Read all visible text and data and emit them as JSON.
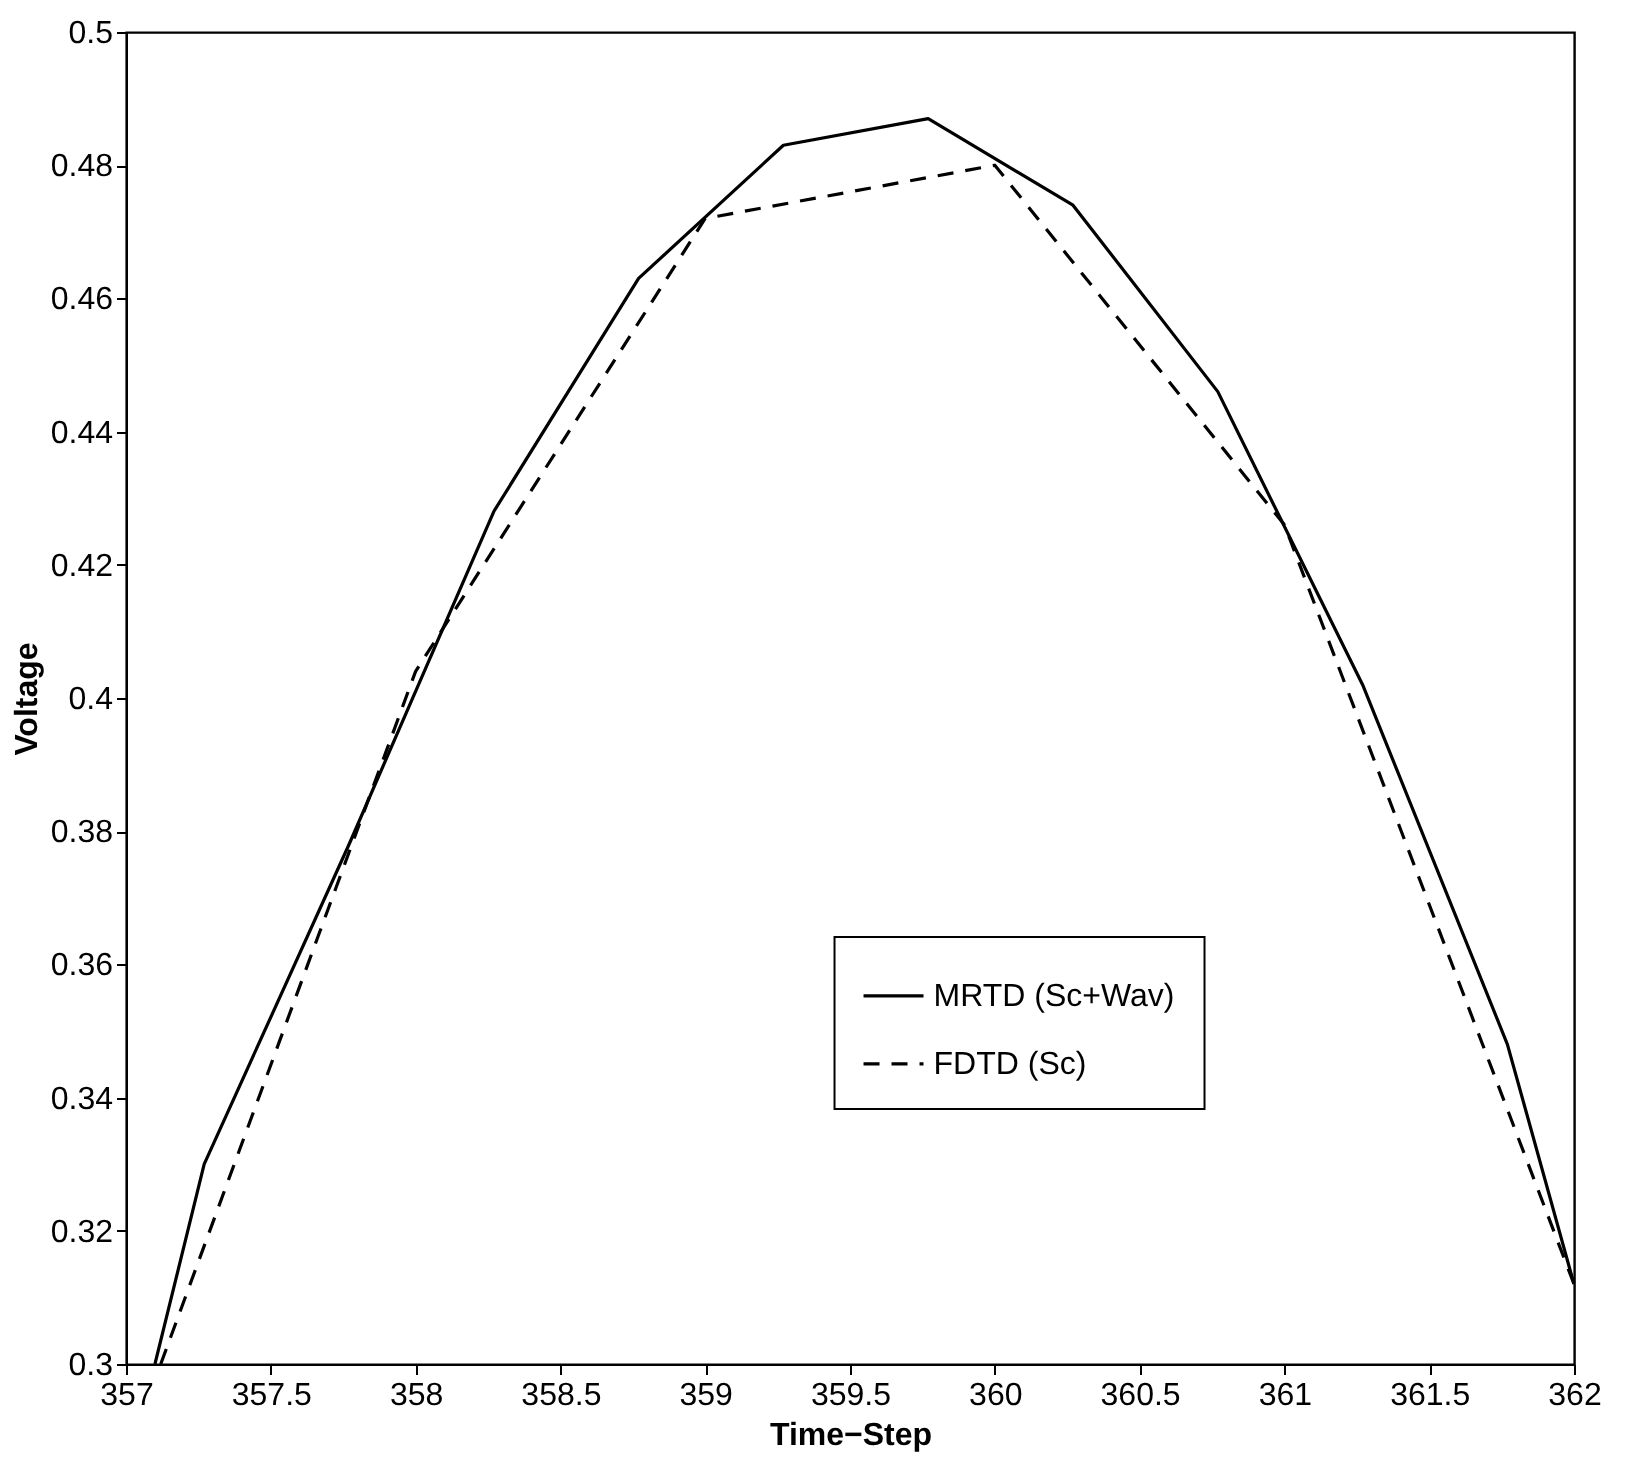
{
  "chart_data": {
    "type": "line",
    "xlabel": "Time−Step",
    "ylabel": "Voltage",
    "xlim": [
      357,
      362
    ],
    "xticks": [
      357,
      357.5,
      358,
      358.5,
      359,
      359.5,
      360,
      360.5,
      361,
      361.5,
      362
    ],
    "ylim": [
      0.3,
      0.5
    ],
    "yticks": [
      0.3,
      0.32,
      0.34,
      0.36,
      0.38,
      0.4,
      0.42,
      0.44,
      0.46,
      0.48,
      0.5
    ],
    "legend": "bottom",
    "grid": false,
    "series": [
      {
        "name": "MRTD (Sc+Wav)",
        "color": "#000000",
        "line_style": "solid",
        "x": [
          357.1,
          357.27,
          357.77,
          358.27,
          358.77,
          359.27,
          359.77,
          360.27,
          360.77,
          361.27,
          361.77,
          362
        ],
        "values": [
          0.3,
          0.33,
          0.378,
          0.428,
          0.463,
          0.483,
          0.487,
          0.474,
          0.446,
          0.402,
          0.348,
          0.312
        ]
      },
      {
        "name": "FDTD (Sc)",
        "color": "#000000",
        "line_style": "dashed",
        "x": [
          357.12,
          358,
          359,
          360,
          361,
          362
        ],
        "values": [
          0.3,
          0.404,
          0.472,
          0.48,
          0.426,
          0.312
        ]
      }
    ]
  }
}
